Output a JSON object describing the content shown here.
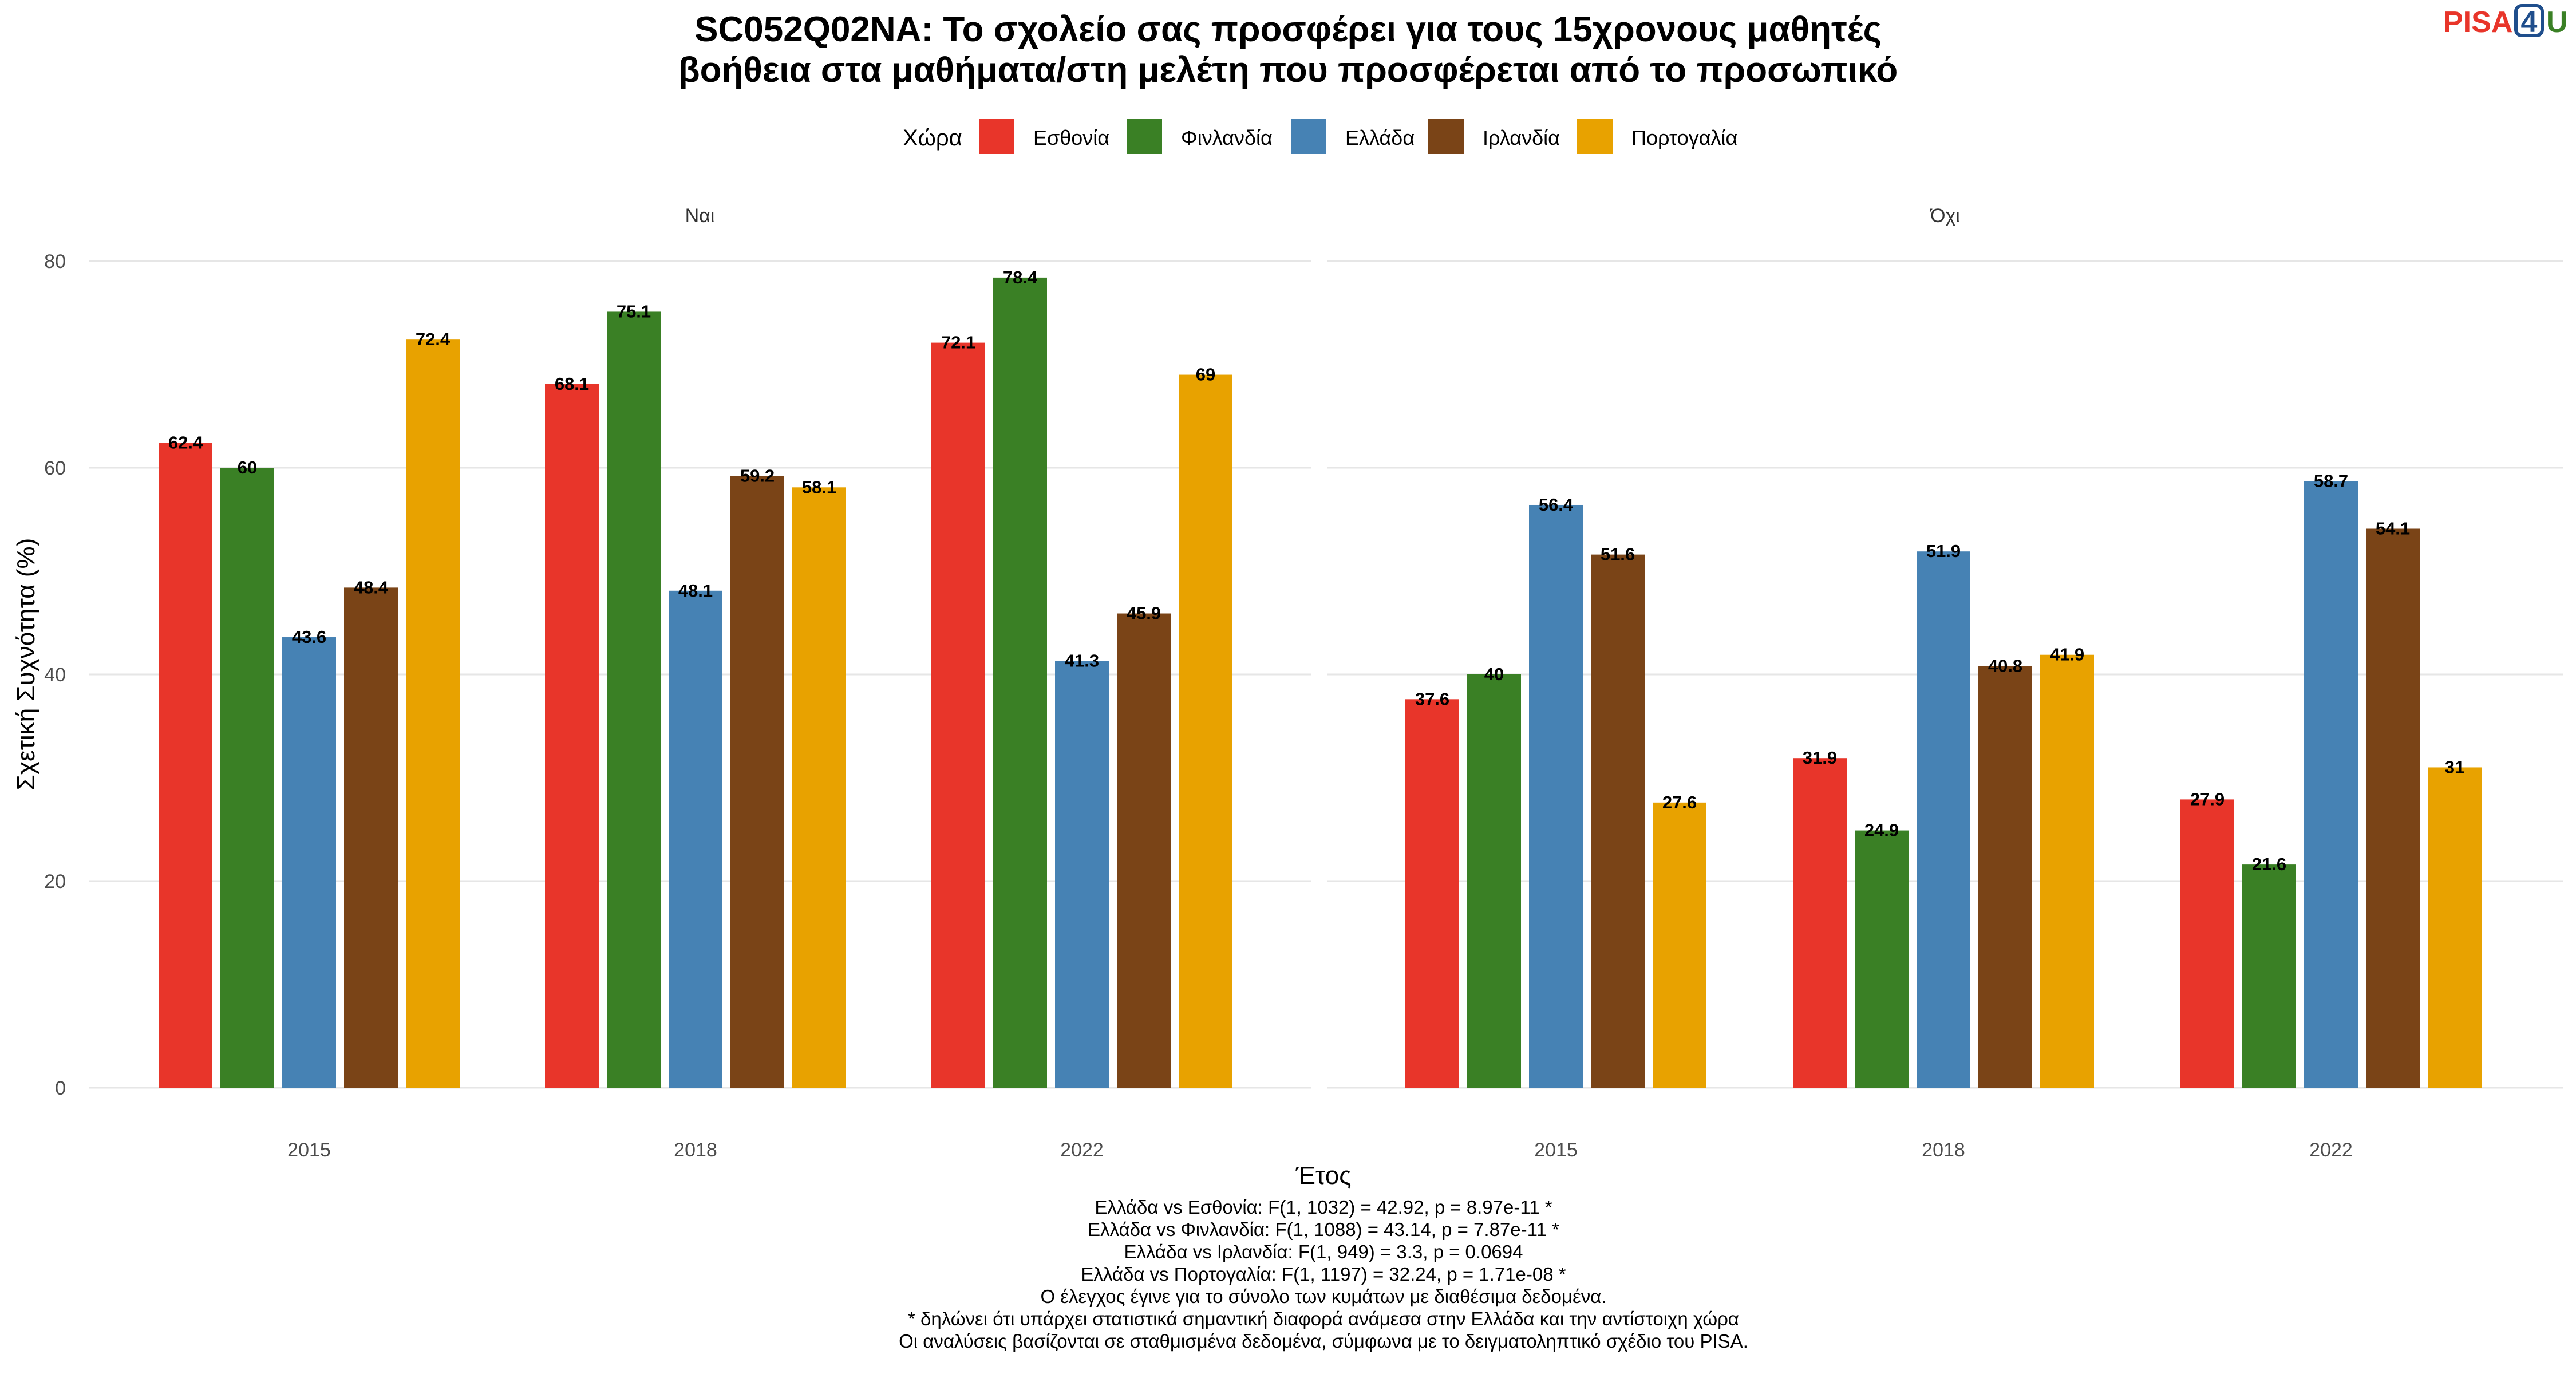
{
  "chart_data": {
    "type": "bar",
    "title": [
      "SC052Q02NA: Το σχολείο σας προσφέρει για τους 15χρονους μαθητές",
      "βοήθεια στα μαθήματα/στη μελέτη που προσφέρεται από το προσωπικό"
    ],
    "xlabel": "Έτος",
    "ylabel": "Σχετική Συχνότητα (%)",
    "ylim": [
      0,
      80
    ],
    "yticks": [
      "0",
      "20",
      "40",
      "60",
      "80"
    ],
    "grid": true,
    "legend_position": "top",
    "legend_title": "Χώρα",
    "categories": [
      "2015",
      "2018",
      "2022"
    ],
    "series": [
      {
        "name": "Εσθονία",
        "color": "#E8352A"
      },
      {
        "name": "Φινλανδία",
        "color": "#3A8025"
      },
      {
        "name": "Ελλάδα",
        "color": "#4682B4"
      },
      {
        "name": "Ιρλανδία",
        "color": "#7A4417"
      },
      {
        "name": "Πορτογαλία",
        "color": "#E8A200"
      }
    ],
    "facets": [
      {
        "label": "Ναι",
        "values": [
          {
            "series": "Εσθονία",
            "values": [
              62.4,
              68.1,
              72.1
            ]
          },
          {
            "series": "Φινλανδία",
            "values": [
              60,
              75.1,
              78.4
            ]
          },
          {
            "series": "Ελλάδα",
            "values": [
              43.6,
              48.1,
              41.3
            ]
          },
          {
            "series": "Ιρλανδία",
            "values": [
              48.4,
              59.2,
              45.9
            ]
          },
          {
            "series": "Πορτογαλία",
            "values": [
              72.4,
              58.1,
              69
            ]
          }
        ]
      },
      {
        "label": "Όχι",
        "values": [
          {
            "series": "Εσθονία",
            "values": [
              37.6,
              31.9,
              27.9
            ]
          },
          {
            "series": "Φινλανδία",
            "values": [
              40,
              24.9,
              21.6
            ]
          },
          {
            "series": "Ελλάδα",
            "values": [
              56.4,
              51.9,
              58.7
            ]
          },
          {
            "series": "Ιρλανδία",
            "values": [
              51.6,
              40.8,
              54.1
            ]
          },
          {
            "series": "Πορτογαλία",
            "values": [
              27.6,
              41.9,
              31
            ]
          }
        ]
      }
    ],
    "caption": [
      "Ελλάδα vs Εσθονία: F(1, 1032) = 42.92, p = 8.97e-11 *",
      "Ελλάδα vs Φινλανδία: F(1, 1088) = 43.14, p = 7.87e-11 *",
      "Ελλάδα vs Ιρλανδία: F(1, 949) = 3.3, p = 0.0694",
      "Ελλάδα vs Πορτογαλία: F(1, 1197) = 32.24, p = 1.71e-08 *",
      "Ο έλεγχος έγινε για το σύνολο των κυμάτων με διαθέσιμα δεδομένα.",
      "* δηλώνει ότι υπάρχει στατιστικά σημαντική διαφορά ανάμεσα στην Ελλάδα και την αντίστοιχη χώρα",
      "Οι αναλύσεις βασίζονται σε σταθμισμένα δεδομένα, σύμφωνα με το δειγματοληπτικό σχέδιο του PISA."
    ]
  },
  "logo": {
    "text_a": "PISA",
    "text_b": "4",
    "text_c": "U",
    "color_a": "#E8352A",
    "color_b": "#1F4E8C",
    "color_c": "#3A8025"
  }
}
